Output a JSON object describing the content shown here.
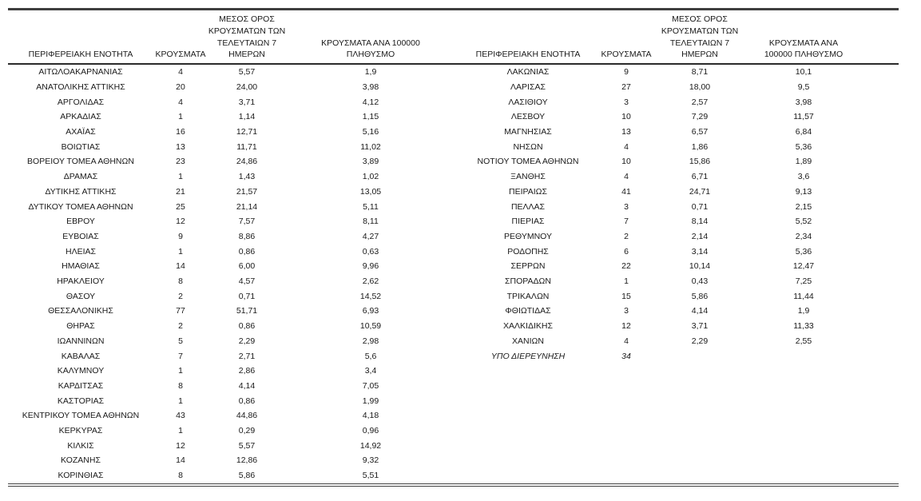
{
  "page": {
    "background_color": "#ffffff",
    "text_color": "#1a1a1a",
    "rule_color": "#3f3f3f"
  },
  "table": {
    "row_count": 28,
    "headers": {
      "region": "ΠΕΡΙΦΕΡΕΙΑΚΗ ΕΝΟΤΗΤΑ",
      "cases": "ΚΡΟΥΣΜΑΤΑ",
      "avg7": "ΜΕΣΟΣ ΟΡΟΣ\nΚΡΟΥΣΜΑΤΩΝ ΤΩΝ\nΤΕΛΕΥΤΑΙΩΝ 7\nΗΜΕΡΩΝ",
      "per100k_left": "ΚΡΟΥΣΜΑΤΑ ΑΝΑ 100000\nΠΛΗΘΥΣΜΟ",
      "per100k_right": "ΚΡΟΥΣΜΑΤΑ ΑΝΑ\n100000 ΠΛΗΘΥΣΜΟ"
    },
    "left_rows": [
      {
        "name": "ΑΙΤΩΛΟΑΚΑΡΝΑΝΙΑΣ",
        "cases": "4",
        "avg7": "5,57",
        "per100k": "1,9"
      },
      {
        "name": "ΑΝΑΤΟΛΙΚΗΣ ΑΤΤΙΚΗΣ",
        "cases": "20",
        "avg7": "24,00",
        "per100k": "3,98"
      },
      {
        "name": "ΑΡΓΟΛΙΔΑΣ",
        "cases": "4",
        "avg7": "3,71",
        "per100k": "4,12"
      },
      {
        "name": "ΑΡΚΑΔΙΑΣ",
        "cases": "1",
        "avg7": "1,14",
        "per100k": "1,15"
      },
      {
        "name": "ΑΧΑΪΑΣ",
        "cases": "16",
        "avg7": "12,71",
        "per100k": "5,16"
      },
      {
        "name": "ΒΟΙΩΤΙΑΣ",
        "cases": "13",
        "avg7": "11,71",
        "per100k": "11,02"
      },
      {
        "name": "ΒΟΡΕΙΟΥ ΤΟΜΕΑ ΑΘΗΝΩΝ",
        "cases": "23",
        "avg7": "24,86",
        "per100k": "3,89"
      },
      {
        "name": "ΔΡΑΜΑΣ",
        "cases": "1",
        "avg7": "1,43",
        "per100k": "1,02"
      },
      {
        "name": "ΔΥΤΙΚΗΣ ΑΤΤΙΚΗΣ",
        "cases": "21",
        "avg7": "21,57",
        "per100k": "13,05"
      },
      {
        "name": "ΔΥΤΙΚΟΥ ΤΟΜΕΑ ΑΘΗΝΩΝ",
        "cases": "25",
        "avg7": "21,14",
        "per100k": "5,11"
      },
      {
        "name": "ΕΒΡΟΥ",
        "cases": "12",
        "avg7": "7,57",
        "per100k": "8,11"
      },
      {
        "name": "ΕΥΒΟΙΑΣ",
        "cases": "9",
        "avg7": "8,86",
        "per100k": "4,27"
      },
      {
        "name": "ΗΛΕΙΑΣ",
        "cases": "1",
        "avg7": "0,86",
        "per100k": "0,63"
      },
      {
        "name": "ΗΜΑΘΙΑΣ",
        "cases": "14",
        "avg7": "6,00",
        "per100k": "9,96"
      },
      {
        "name": "ΗΡΑΚΛΕΙΟΥ",
        "cases": "8",
        "avg7": "4,57",
        "per100k": "2,62"
      },
      {
        "name": "ΘΑΣΟΥ",
        "cases": "2",
        "avg7": "0,71",
        "per100k": "14,52"
      },
      {
        "name": "ΘΕΣΣΑΛΟΝΙΚΗΣ",
        "cases": "77",
        "avg7": "51,71",
        "per100k": "6,93"
      },
      {
        "name": "ΘΗΡΑΣ",
        "cases": "2",
        "avg7": "0,86",
        "per100k": "10,59"
      },
      {
        "name": "ΙΩΑΝΝΙΝΩΝ",
        "cases": "5",
        "avg7": "2,29",
        "per100k": "2,98"
      },
      {
        "name": "ΚΑΒΑΛΑΣ",
        "cases": "7",
        "avg7": "2,71",
        "per100k": "5,6"
      },
      {
        "name": "ΚΑΛΥΜΝΟΥ",
        "cases": "1",
        "avg7": "2,86",
        "per100k": "3,4"
      },
      {
        "name": "ΚΑΡΔΙΤΣΑΣ",
        "cases": "8",
        "avg7": "4,14",
        "per100k": "7,05"
      },
      {
        "name": "ΚΑΣΤΟΡΙΑΣ",
        "cases": "1",
        "avg7": "0,86",
        "per100k": "1,99"
      },
      {
        "name": "ΚΕΝΤΡΙΚΟΥ ΤΟΜΕΑ ΑΘΗΝΩΝ",
        "cases": "43",
        "avg7": "44,86",
        "per100k": "4,18"
      },
      {
        "name": "ΚΕΡΚΥΡΑΣ",
        "cases": "1",
        "avg7": "0,29",
        "per100k": "0,96"
      },
      {
        "name": "ΚΙΛΚΙΣ",
        "cases": "12",
        "avg7": "5,57",
        "per100k": "14,92"
      },
      {
        "name": "ΚΟΖΑΝΗΣ",
        "cases": "14",
        "avg7": "12,86",
        "per100k": "9,32"
      },
      {
        "name": "ΚΟΡΙΝΘΙΑΣ",
        "cases": "8",
        "avg7": "5,86",
        "per100k": "5,51"
      }
    ],
    "right_rows": [
      {
        "name": "ΛΑΚΩΝΙΑΣ",
        "cases": "9",
        "avg7": "8,71",
        "per100k": "10,1"
      },
      {
        "name": "ΛΑΡΙΣΑΣ",
        "cases": "27",
        "avg7": "18,00",
        "per100k": "9,5"
      },
      {
        "name": "ΛΑΣΙΘΙΟΥ",
        "cases": "3",
        "avg7": "2,57",
        "per100k": "3,98"
      },
      {
        "name": "ΛΕΣΒΟΥ",
        "cases": "10",
        "avg7": "7,29",
        "per100k": "11,57"
      },
      {
        "name": "ΜΑΓΝΗΣΙΑΣ",
        "cases": "13",
        "avg7": "6,57",
        "per100k": "6,84"
      },
      {
        "name": "ΝΗΣΩΝ",
        "cases": "4",
        "avg7": "1,86",
        "per100k": "5,36"
      },
      {
        "name": "ΝΟΤΙΟΥ ΤΟΜΕΑ ΑΘΗΝΩΝ",
        "cases": "10",
        "avg7": "15,86",
        "per100k": "1,89"
      },
      {
        "name": "ΞΑΝΘΗΣ",
        "cases": "4",
        "avg7": "6,71",
        "per100k": "3,6"
      },
      {
        "name": "ΠΕΙΡΑΙΩΣ",
        "cases": "41",
        "avg7": "24,71",
        "per100k": "9,13"
      },
      {
        "name": "ΠΕΛΛΑΣ",
        "cases": "3",
        "avg7": "0,71",
        "per100k": "2,15"
      },
      {
        "name": "ΠΙΕΡΙΑΣ",
        "cases": "7",
        "avg7": "8,14",
        "per100k": "5,52"
      },
      {
        "name": "ΡΕΘΥΜΝΟΥ",
        "cases": "2",
        "avg7": "2,14",
        "per100k": "2,34"
      },
      {
        "name": "ΡΟΔΟΠΗΣ",
        "cases": "6",
        "avg7": "3,14",
        "per100k": "5,36"
      },
      {
        "name": "ΣΕΡΡΩΝ",
        "cases": "22",
        "avg7": "10,14",
        "per100k": "12,47"
      },
      {
        "name": "ΣΠΟΡΑΔΩΝ",
        "cases": "1",
        "avg7": "0,43",
        "per100k": "7,25"
      },
      {
        "name": "ΤΡΙΚΑΛΩΝ",
        "cases": "15",
        "avg7": "5,86",
        "per100k": "11,44"
      },
      {
        "name": "ΦΘΙΩΤΙΔΑΣ",
        "cases": "3",
        "avg7": "4,14",
        "per100k": "1,9"
      },
      {
        "name": "ΧΑΛΚΙΔΙΚΗΣ",
        "cases": "12",
        "avg7": "3,71",
        "per100k": "11,33"
      },
      {
        "name": "ΧΑΝΙΩΝ",
        "cases": "4",
        "avg7": "2,29",
        "per100k": "2,55"
      },
      {
        "name": "ΥΠΟ ΔΙΕΡΕΥΝΗΣΗ",
        "cases": "34",
        "avg7": "",
        "per100k": "",
        "italic": true
      }
    ]
  }
}
